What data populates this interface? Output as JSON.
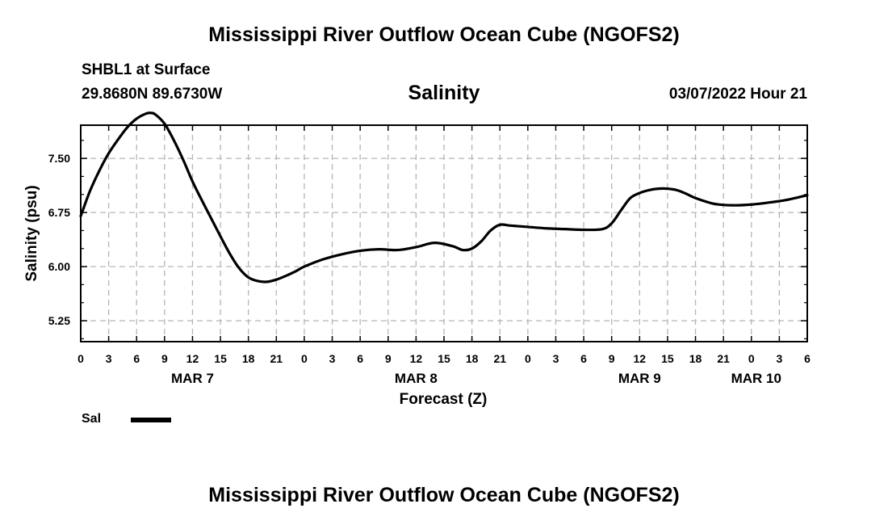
{
  "header": {
    "title": "Mississippi River Outflow Ocean Cube (NGOFS2)",
    "station": "SHBL1 at Surface",
    "coordinates": "29.8680N  89.6730W",
    "parameter": "Salinity",
    "datetime": "03/07/2022 Hour 21"
  },
  "footer": {
    "title": "Mississippi River Outflow Ocean Cube (NGOFS2)"
  },
  "legend": {
    "label": "Sal",
    "color": "#000000"
  },
  "chart_data": {
    "type": "line",
    "title": "Salinity",
    "xlabel": "Forecast (Z)",
    "ylabel": "Salinity (psu)",
    "xlim": [
      0,
      78
    ],
    "ylim": [
      4.96,
      7.96
    ],
    "grid": true,
    "x_ticks": [
      0,
      3,
      6,
      9,
      12,
      15,
      18,
      21,
      24,
      27,
      30,
      33,
      36,
      39,
      42,
      45,
      48,
      51,
      54,
      57,
      60,
      63,
      66,
      69,
      72,
      75,
      78
    ],
    "x_tick_labels": [
      "0",
      "3",
      "6",
      "9",
      "12",
      "15",
      "18",
      "21",
      "0",
      "3",
      "6",
      "9",
      "12",
      "15",
      "18",
      "21",
      "0",
      "3",
      "6",
      "9",
      "12",
      "15",
      "18",
      "21",
      "0",
      "3",
      "6"
    ],
    "y_ticks": [
      5.25,
      6.0,
      6.75,
      7.5
    ],
    "y_tick_labels": [
      "5.25",
      "6.00",
      "6.75",
      "7.50"
    ],
    "date_labels": [
      {
        "x": 12,
        "label": "MAR 7"
      },
      {
        "x": 36,
        "label": "MAR 8"
      },
      {
        "x": 60,
        "label": "MAR 9"
      },
      {
        "x": 72,
        "label": "MAR 10"
      }
    ],
    "series": [
      {
        "name": "Sal",
        "x": [
          0,
          1,
          2,
          3,
          4,
          5,
          6,
          7,
          7.5,
          8,
          9,
          10,
          11,
          12,
          13,
          14,
          15,
          16,
          17,
          18,
          19,
          20,
          21,
          22,
          23,
          24,
          26,
          28,
          30,
          32,
          34,
          36,
          38,
          40,
          41,
          42,
          43,
          44,
          45,
          46,
          47,
          48,
          50,
          52,
          54,
          56,
          57,
          58,
          59,
          60,
          61,
          62,
          63,
          64,
          65,
          66,
          68,
          70,
          72,
          74,
          76,
          78
        ],
        "y": [
          6.7,
          7.05,
          7.33,
          7.57,
          7.76,
          7.93,
          8.05,
          8.12,
          8.13,
          8.11,
          7.98,
          7.75,
          7.48,
          7.18,
          6.92,
          6.67,
          6.42,
          6.18,
          5.98,
          5.85,
          5.8,
          5.79,
          5.82,
          5.87,
          5.93,
          6.0,
          6.1,
          6.17,
          6.22,
          6.24,
          6.23,
          6.27,
          6.33,
          6.28,
          6.23,
          6.25,
          6.35,
          6.5,
          6.58,
          6.57,
          6.56,
          6.55,
          6.53,
          6.52,
          6.51,
          6.52,
          6.6,
          6.78,
          6.95,
          7.02,
          7.06,
          7.08,
          7.08,
          7.06,
          7.01,
          6.95,
          6.87,
          6.85,
          6.86,
          6.89,
          6.93,
          6.99
        ]
      }
    ]
  }
}
